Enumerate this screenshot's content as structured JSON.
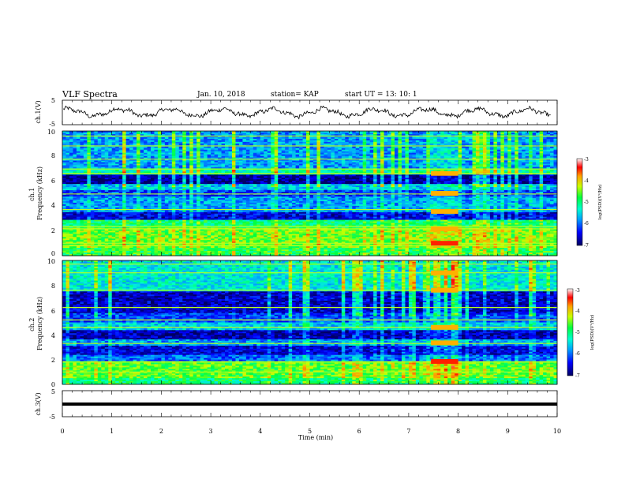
{
  "header": {
    "title": "VLF Spectra",
    "date": "Jan. 10, 2018",
    "station": "station= KAP",
    "start": "start  UT =   13: 10: 1"
  },
  "colors": {
    "trace": "#000000",
    "colormap": [
      "#1a004d",
      "#0000b0",
      "#0050ff",
      "#00b0ff",
      "#00e8c0",
      "#40f060",
      "#c0f000",
      "#ffd800",
      "#ff6000",
      "#e00000",
      "#ffffff"
    ]
  },
  "chart_data": [
    {
      "id": "ch1-waveform",
      "type": "line",
      "ylabel": "ch.1(V)",
      "ylim": [
        -5,
        5
      ],
      "yticks": [
        "5",
        "-5"
      ],
      "xlim": [
        0,
        10
      ],
      "description_shape": "noisy sinusoid ~9.5 cycles, amplitude ~1.8 V"
    },
    {
      "id": "ch1-spectrogram",
      "type": "heatmap",
      "ylabel": "ch.1 Frequency (kHz)",
      "ylim": [
        0,
        10
      ],
      "yticks": [
        "0",
        "2",
        "4",
        "6",
        "8",
        "10"
      ],
      "xlim": [
        0,
        10
      ],
      "colorbar": {
        "ticks": [
          "-3",
          "-4",
          "-5",
          "-6",
          "-7"
        ],
        "label": "log(PSD)(V²/Hz)"
      },
      "bands_kHz": [
        {
          "from": 0,
          "to": 0.6,
          "level": 0.55
        },
        {
          "from": 0.6,
          "to": 2.3,
          "level": 0.62
        },
        {
          "from": 2.3,
          "to": 2.9,
          "level": 0.5
        },
        {
          "from": 2.9,
          "to": 3.5,
          "level": 0.12
        },
        {
          "from": 3.5,
          "to": 4.7,
          "level": 0.3
        },
        {
          "from": 4.7,
          "to": 5.3,
          "level": 0.2
        },
        {
          "from": 5.3,
          "to": 5.7,
          "level": 0.35
        },
        {
          "from": 5.7,
          "to": 6.5,
          "level": 0.05
        },
        {
          "from": 6.5,
          "to": 7.0,
          "level": 0.45
        },
        {
          "from": 7.0,
          "to": 10,
          "level": 0.3
        }
      ],
      "lines_kHz": [
        0.8,
        1.0,
        2.15,
        2.35,
        3.7,
        4.95,
        6.6,
        6.95,
        7.75,
        8.8,
        9.6
      ],
      "event": {
        "t_start": 7.45,
        "t_end": 8.0,
        "hot_kHz": [
          1.0,
          2.15,
          3.55,
          5.0,
          6.6
        ]
      }
    },
    {
      "id": "ch2-spectrogram",
      "type": "heatmap",
      "ylabel": "ch.2 Frequency (kHz)",
      "ylim": [
        0,
        10
      ],
      "yticks": [
        "0",
        "2",
        "4",
        "6",
        "8",
        "10"
      ],
      "xlim": [
        0,
        10
      ],
      "colorbar": {
        "ticks": [
          "-3",
          "-4",
          "-5",
          "-6",
          "-7"
        ],
        "label": "log(PSD)(V²/Hz)"
      },
      "bands_kHz": [
        {
          "from": 0,
          "to": 0.5,
          "level": 0.5
        },
        {
          "from": 0.5,
          "to": 1.9,
          "level": 0.6
        },
        {
          "from": 1.9,
          "to": 2.4,
          "level": 0.25
        },
        {
          "from": 2.4,
          "to": 3.1,
          "level": 0.12
        },
        {
          "from": 3.1,
          "to": 3.6,
          "level": 0.3
        },
        {
          "from": 3.6,
          "to": 4.4,
          "level": 0.08
        },
        {
          "from": 4.4,
          "to": 5.0,
          "level": 0.35
        },
        {
          "from": 5.0,
          "to": 5.8,
          "level": 0.22
        },
        {
          "from": 5.8,
          "to": 7.5,
          "level": 0.1
        },
        {
          "from": 7.5,
          "to": 10,
          "level": 0.4
        }
      ],
      "lines_kHz": [
        1.0,
        1.8,
        3.3,
        4.6,
        5.2,
        6.2,
        7.6,
        9.0,
        9.7
      ],
      "event": {
        "t_start": 7.45,
        "t_end": 8.0,
        "hot_kHz": [
          1.85,
          3.35,
          4.6,
          7.6,
          9.0
        ]
      }
    },
    {
      "id": "ch3-waveform",
      "type": "line",
      "ylabel": "ch.3(V)",
      "ylim": [
        -5,
        5
      ],
      "yticks": [
        "5",
        "-5"
      ],
      "xlim": [
        0,
        10
      ],
      "xlabel": "Time  (min)",
      "xticks": [
        "0",
        "1",
        "2",
        "3",
        "4",
        "5",
        "6",
        "7",
        "8",
        "9",
        "10"
      ],
      "constant_value": 0
    }
  ]
}
